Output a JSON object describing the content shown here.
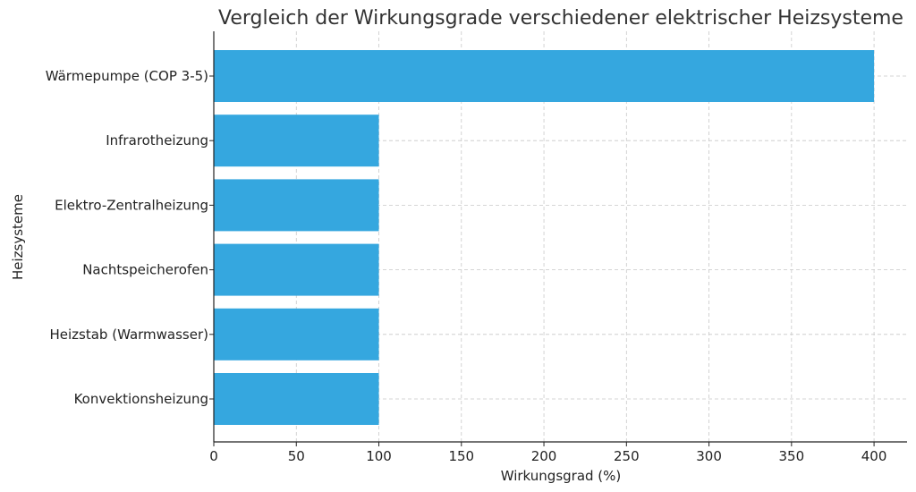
{
  "chart_data": {
    "type": "bar",
    "orientation": "horizontal",
    "title": "Vergleich der Wirkungsgrade verschiedener elektrischer Heizsysteme",
    "xlabel": "Wirkungsgrad (%)",
    "ylabel": "Heizsysteme",
    "categories": [
      "Wärmepumpe (COP 3-5)",
      "Infrarotheizung",
      "Elektro-Zentralheizung",
      "Nachtspeicherofen",
      "Heizstab (Warmwasser)",
      "Konvektionsheizung"
    ],
    "values": [
      400,
      100,
      100,
      100,
      100,
      100
    ],
    "xlim": [
      0,
      420
    ],
    "xticks": [
      0,
      50,
      100,
      150,
      200,
      250,
      300,
      350,
      400
    ],
    "grid": true,
    "bar_color": "#35a7df"
  }
}
